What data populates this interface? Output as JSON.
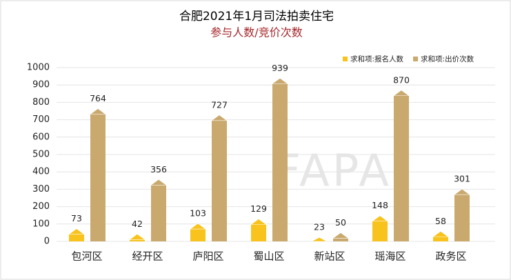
{
  "chart_data": {
    "type": "bar",
    "title": "合肥2021年1月司法拍卖住宅",
    "subtitle": "参与人数/竞价次数",
    "watermark": "FAPAI",
    "categories": [
      "包河区",
      "经开区",
      "庐阳区",
      "蜀山区",
      "新站区",
      "瑶海区",
      "政务区"
    ],
    "series": [
      {
        "name": "求和项:报名人数",
        "color": "#f7c31c",
        "values": [
          73,
          42,
          103,
          129,
          23,
          148,
          58
        ]
      },
      {
        "name": "求和项:出价次数",
        "color": "#c9a96e",
        "values": [
          764,
          356,
          727,
          939,
          50,
          870,
          301
        ]
      }
    ],
    "ylim": [
      0,
      1000
    ],
    "yticks": [
      0,
      100,
      200,
      300,
      400,
      500,
      600,
      700,
      800,
      900,
      1000
    ],
    "grid": true,
    "legend": "top-right"
  }
}
